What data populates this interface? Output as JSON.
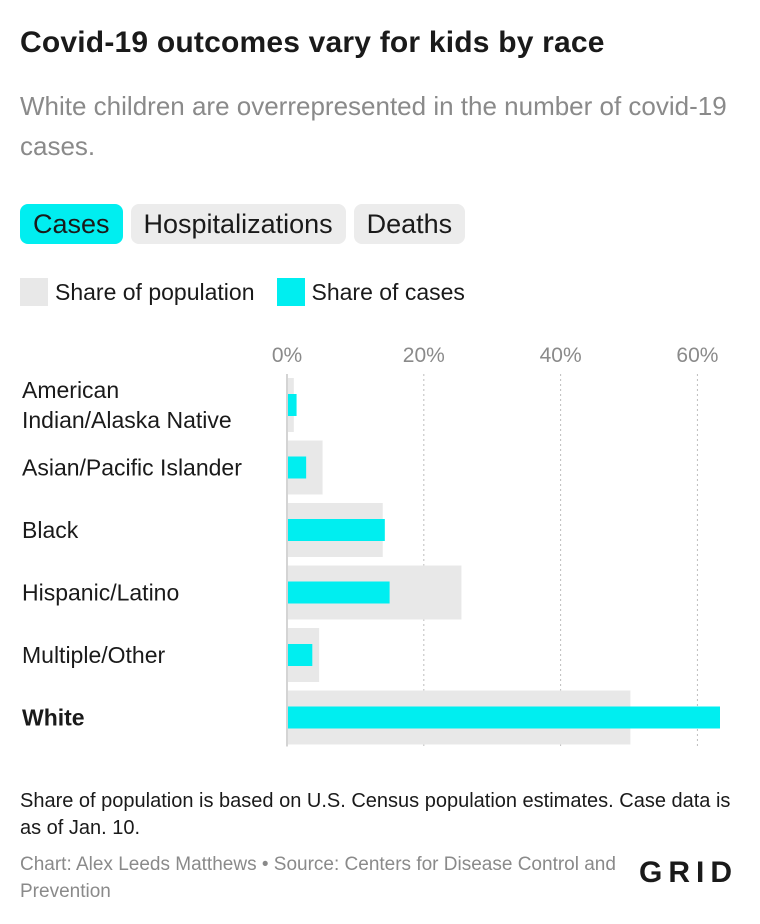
{
  "title": "Covid-19 outcomes vary for kids by race",
  "subtitle": "White children are overrepresented in the number of covid-19 cases.",
  "tabs": [
    {
      "label": "Cases",
      "active": true
    },
    {
      "label": "Hospitalizations",
      "active": false
    },
    {
      "label": "Deaths",
      "active": false
    }
  ],
  "legend": [
    {
      "label": "Share of population",
      "color": "#e8e8e8"
    },
    {
      "label": "Share of cases",
      "color": "#00eef0"
    }
  ],
  "chart_data": {
    "type": "bar",
    "orientation": "horizontal",
    "categories": [
      "American Indian/Alaska Native",
      "Asian/Pacific Islander",
      "Black",
      "Hispanic/Latino",
      "Multiple/Other",
      "White"
    ],
    "bold_categories": [
      "White"
    ],
    "series": [
      {
        "name": "Share of population",
        "color": "#e8e8e8",
        "values": [
          1,
          5.2,
          14,
          25.5,
          4.7,
          50.2
        ]
      },
      {
        "name": "Share of cases",
        "color": "#00eef0",
        "values": [
          1.4,
          2.8,
          14.3,
          15,
          3.7,
          63.3
        ]
      }
    ],
    "x_ticks": [
      "0%",
      "20%",
      "40%",
      "60%"
    ],
    "x_tick_values": [
      0,
      20,
      40,
      60
    ],
    "xlim": [
      0,
      63.3
    ],
    "grid": true
  },
  "note": "Share of population is based on U.S. Census population estimates. Case data is as of Jan. 10.",
  "credit": "Chart: Alex Leeds Matthews • Source: Centers for Disease Control and Prevention",
  "logo": "GRID"
}
